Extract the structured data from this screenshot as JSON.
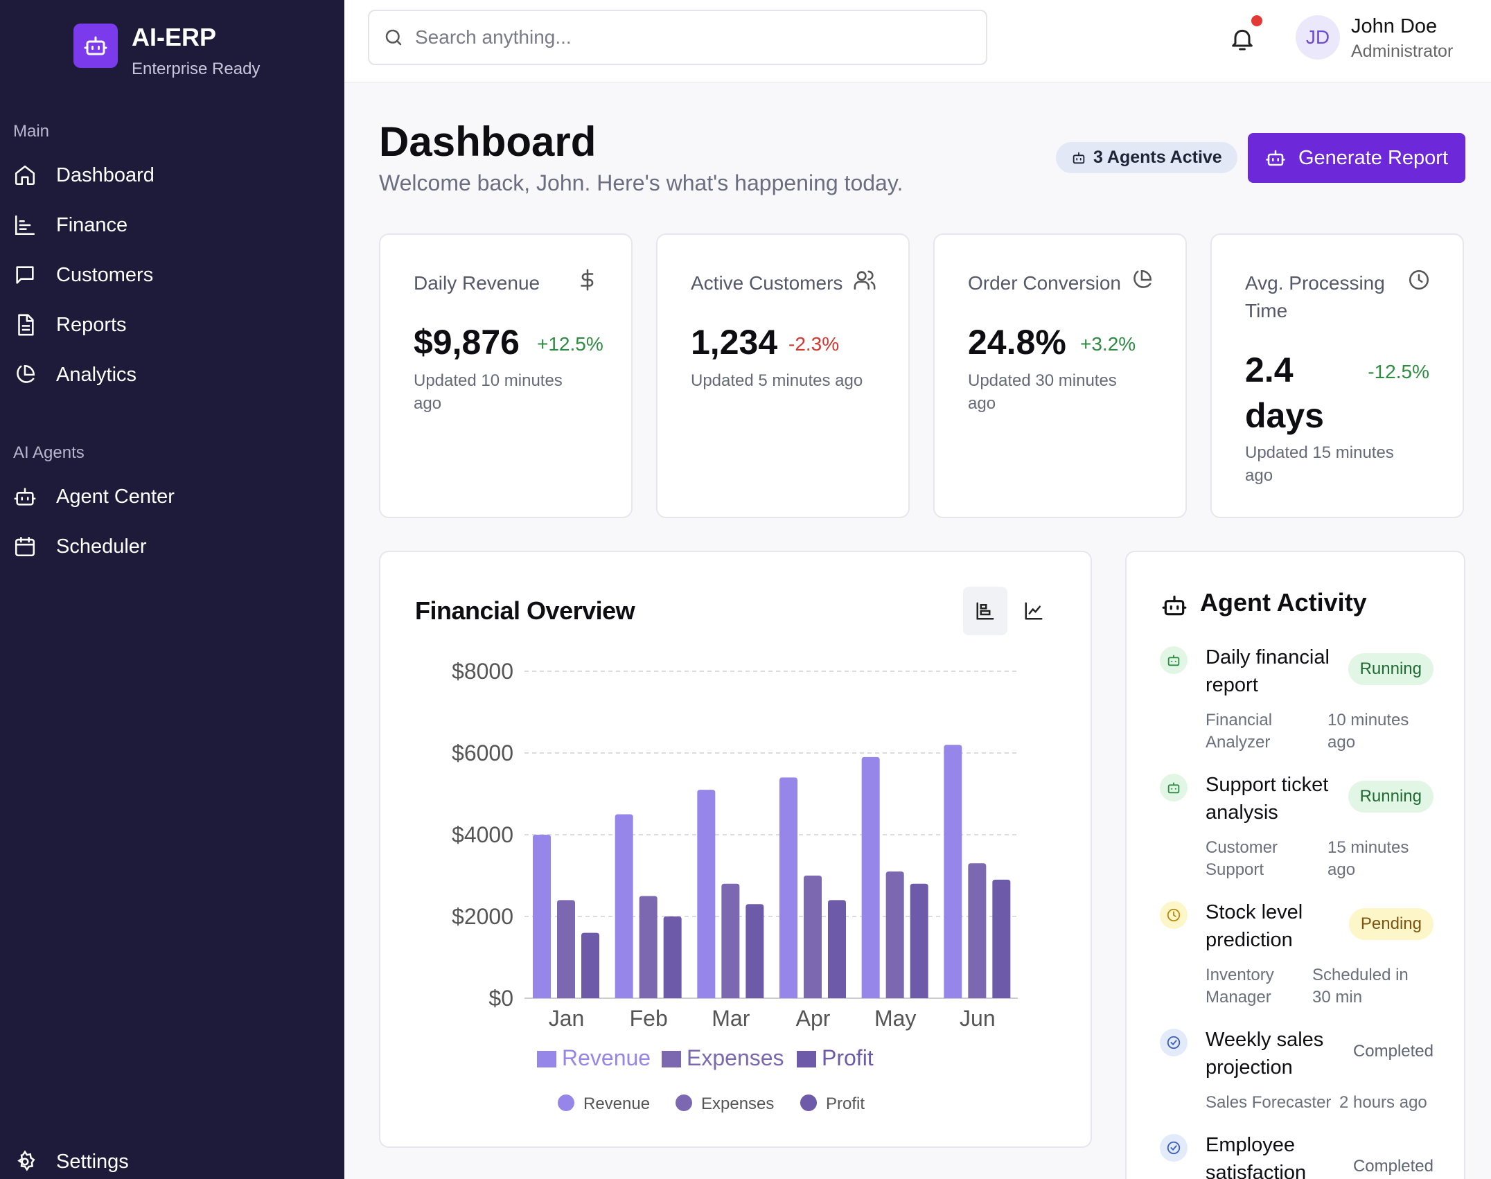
{
  "brand": {
    "title": "AI-ERP",
    "subtitle": "Enterprise Ready"
  },
  "sidebar": {
    "main_label": "Main",
    "main_items": [
      {
        "label": "Dashboard",
        "icon": "home-icon"
      },
      {
        "label": "Finance",
        "icon": "bar-chart-icon"
      },
      {
        "label": "Customers",
        "icon": "message-icon"
      },
      {
        "label": "Reports",
        "icon": "document-icon"
      },
      {
        "label": "Analytics",
        "icon": "pie-chart-icon"
      }
    ],
    "agents_label": "AI Agents",
    "agent_items": [
      {
        "label": "Agent Center",
        "icon": "robot-icon"
      },
      {
        "label": "Scheduler",
        "icon": "calendar-icon"
      }
    ],
    "settings_label": "Settings"
  },
  "topbar": {
    "search_placeholder": "Search anything...",
    "user_initials": "JD",
    "user_name": "John Doe",
    "user_role": "Administrator"
  },
  "header": {
    "title": "Dashboard",
    "subtitle": "Welcome back, John. Here's what's happening today.",
    "agents_badge": "3 Agents Active",
    "generate_button": "Generate Report"
  },
  "kpis": [
    {
      "label": "Daily Revenue",
      "value": "$9,876",
      "change": "+12.5%",
      "updated_1": "Updated 10 minutes",
      "updated_2": "ago",
      "icon": "dollar-icon"
    },
    {
      "label": "Active Customers",
      "value": "1,234",
      "change": "-2.3%",
      "updated_1": "Updated 5 minutes ago",
      "updated_2": "",
      "icon": "users-icon"
    },
    {
      "label": "Order Conversion",
      "value": "24.8%",
      "change": "+3.2%",
      "updated_1": "Updated 30 minutes",
      "updated_2": "ago",
      "icon": "pie-chart-icon"
    },
    {
      "label_1": "Avg. Processing",
      "label_2": "Time",
      "value_1": "2.4",
      "value_2": "days",
      "change": "-12.5%",
      "updated_1": "Updated 15 minutes",
      "updated_2": "ago",
      "icon": "clock-icon"
    }
  ],
  "chart_card": {
    "title": "Financial Overview"
  },
  "chart_data": {
    "type": "bar",
    "categories": [
      "Jan",
      "Feb",
      "Mar",
      "Apr",
      "May",
      "Jun"
    ],
    "series": [
      {
        "name": "Revenue",
        "values": [
          4000,
          4500,
          5100,
          5400,
          5900,
          6200
        ]
      },
      {
        "name": "Expenses",
        "values": [
          2400,
          2500,
          2800,
          3000,
          3100,
          3300
        ]
      },
      {
        "name": "Profit",
        "values": [
          1600,
          2000,
          2300,
          2400,
          2800,
          2900
        ]
      }
    ],
    "ylim": [
      0,
      8000
    ],
    "yticks": [
      "$0",
      "$2000",
      "$4000",
      "$6000",
      "$8000"
    ],
    "grid": true,
    "legend": "bottom",
    "colors": [
      "#9686e9",
      "#7b68b0",
      "#6d5aa8"
    ]
  },
  "agent_activity": {
    "title": "Agent Activity",
    "items": [
      {
        "title": "Daily financial report",
        "status": "Running",
        "agent": "Financial Analyzer",
        "time": "10 minutes ago",
        "kind": "running"
      },
      {
        "title": "Support ticket analysis",
        "status": "Running",
        "agent": "Customer Support",
        "time": "15 minutes ago",
        "kind": "running"
      },
      {
        "title": "Stock level prediction",
        "status": "Pending",
        "agent": "Inventory Manager",
        "time": "Scheduled in 30 min",
        "kind": "pending"
      },
      {
        "title": "Weekly sales projection",
        "status": "Completed",
        "agent": "Sales Forecaster",
        "time": "2 hours ago",
        "kind": "completed"
      },
      {
        "title": "Employee satisfaction",
        "status": "Completed",
        "agent": "",
        "time": "",
        "kind": "completed"
      }
    ]
  }
}
